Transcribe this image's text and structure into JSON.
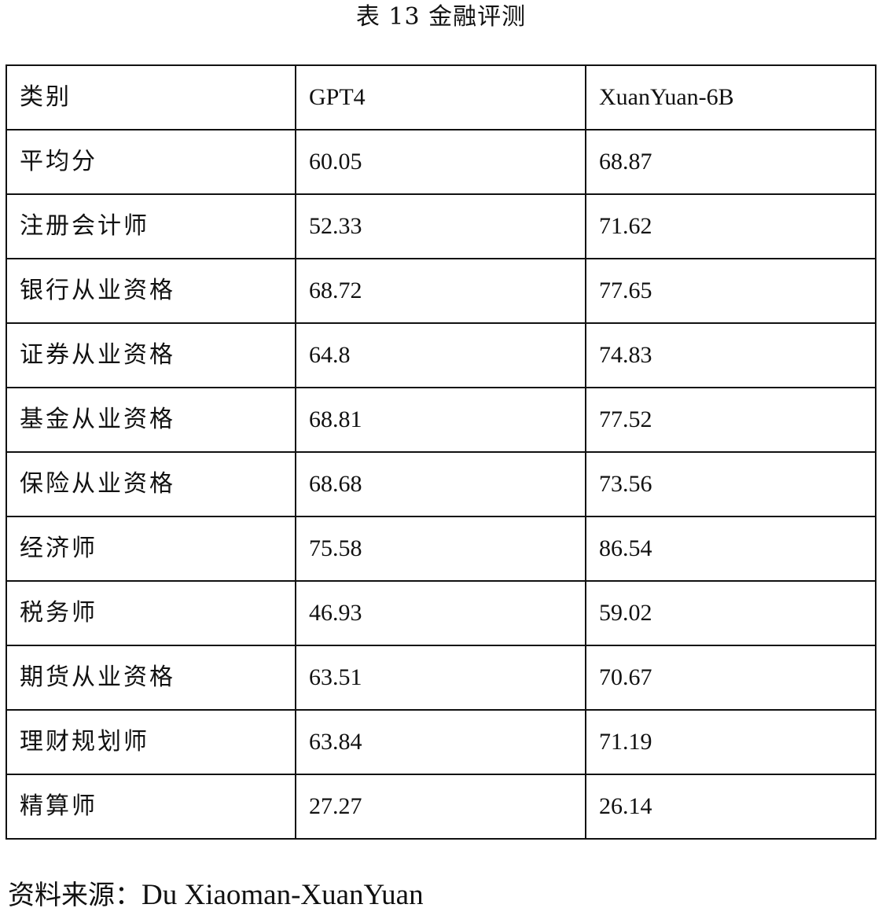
{
  "title": "表 13 金融评测",
  "headers": [
    "类别",
    "GPT4",
    "XuanYuan-6B"
  ],
  "rows": [
    {
      "category": "平均分",
      "gpt4": "60.05",
      "xuanyuan": "68.87"
    },
    {
      "category": "注册会计师",
      "gpt4": "52.33",
      "xuanyuan": "71.62"
    },
    {
      "category": "银行从业资格",
      "gpt4": "68.72",
      "xuanyuan": "77.65"
    },
    {
      "category": "证券从业资格",
      "gpt4": "64.8",
      "xuanyuan": "74.83"
    },
    {
      "category": "基金从业资格",
      "gpt4": "68.81",
      "xuanyuan": "77.52"
    },
    {
      "category": "保险从业资格",
      "gpt4": "68.68",
      "xuanyuan": "73.56"
    },
    {
      "category": "经济师",
      "gpt4": "75.58",
      "xuanyuan": "86.54"
    },
    {
      "category": "税务师",
      "gpt4": "46.93",
      "xuanyuan": "59.02"
    },
    {
      "category": "期货从业资格",
      "gpt4": "63.51",
      "xuanyuan": "70.67"
    },
    {
      "category": "理财规划师",
      "gpt4": "63.84",
      "xuanyuan": "71.19"
    },
    {
      "category": "精算师",
      "gpt4": "27.27",
      "xuanyuan": "26.14"
    }
  ],
  "source": {
    "label": "资料来源：",
    "text": "Du Xiaoman-XuanYuan"
  }
}
